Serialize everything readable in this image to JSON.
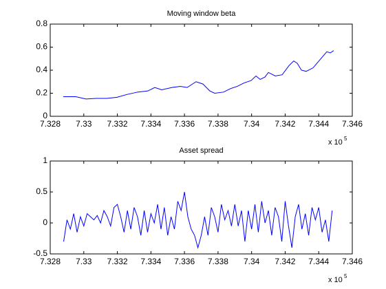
{
  "chart_data": [
    {
      "type": "line",
      "title": "Moving window beta",
      "x_scale_label": "x 10",
      "x_scale_exponent": "5",
      "xlim": [
        7.328,
        7.346
      ],
      "xticks": [
        7.328,
        7.33,
        7.332,
        7.334,
        7.336,
        7.338,
        7.34,
        7.342,
        7.344,
        7.346
      ],
      "ylim": [
        0,
        0.8
      ],
      "yticks": [
        0,
        0.2,
        0.4,
        0.6,
        0.8
      ],
      "grid": false,
      "x": [
        7.32878,
        7.32952,
        7.33013,
        7.33075,
        7.33136,
        7.33198,
        7.33259,
        7.33321,
        7.33382,
        7.33423,
        7.33464,
        7.33526,
        7.33575,
        7.33616,
        7.33669,
        7.3371,
        7.33751,
        7.3378,
        7.33833,
        7.33874,
        7.33915,
        7.33956,
        7.33997,
        7.34026,
        7.34051,
        7.34079,
        7.341,
        7.34141,
        7.34182,
        7.34223,
        7.34251,
        7.34272,
        7.34297,
        7.34325,
        7.34366,
        7.34407,
        7.34448,
        7.34469,
        7.34489
      ],
      "series": [
        {
          "name": "beta",
          "color": "#0000ff",
          "values": [
            0.17,
            0.17,
            0.15,
            0.155,
            0.155,
            0.165,
            0.19,
            0.21,
            0.22,
            0.25,
            0.23,
            0.25,
            0.26,
            0.25,
            0.3,
            0.28,
            0.22,
            0.2,
            0.21,
            0.24,
            0.26,
            0.29,
            0.31,
            0.35,
            0.32,
            0.34,
            0.38,
            0.35,
            0.36,
            0.44,
            0.48,
            0.46,
            0.4,
            0.39,
            0.42,
            0.49,
            0.56,
            0.55,
            0.57
          ]
        }
      ]
    },
    {
      "type": "line",
      "title": "Asset spread",
      "x_scale_label": "x 10",
      "x_scale_exponent": "5",
      "xlim": [
        7.328,
        7.346
      ],
      "xticks": [
        7.328,
        7.33,
        7.332,
        7.334,
        7.336,
        7.338,
        7.34,
        7.342,
        7.344,
        7.346
      ],
      "ylim": [
        -0.5,
        1
      ],
      "yticks": [
        -0.5,
        0,
        0.5,
        1
      ],
      "grid": false,
      "x": [
        7.3288,
        7.329,
        7.3292,
        7.3294,
        7.3296,
        7.3298,
        7.33,
        7.3302,
        7.3304,
        7.3306,
        7.3308,
        7.331,
        7.3312,
        7.3314,
        7.3316,
        7.3318,
        7.332,
        7.3322,
        7.3324,
        7.3326,
        7.3328,
        7.333,
        7.3332,
        7.3334,
        7.3336,
        7.3338,
        7.334,
        7.3342,
        7.3344,
        7.3346,
        7.3348,
        7.335,
        7.3352,
        7.3354,
        7.3356,
        7.3358,
        7.336,
        7.3362,
        7.3364,
        7.3366,
        7.3368,
        7.337,
        7.3372,
        7.3374,
        7.3376,
        7.3378,
        7.338,
        7.3382,
        7.3384,
        7.3386,
        7.3388,
        7.339,
        7.3392,
        7.3394,
        7.3396,
        7.3398,
        7.34,
        7.3402,
        7.3404,
        7.3406,
        7.3408,
        7.341,
        7.3412,
        7.3414,
        7.3416,
        7.3418,
        7.342,
        7.3422,
        7.3424,
        7.3426,
        7.3428,
        7.343,
        7.3432,
        7.3434,
        7.3436,
        7.3438,
        7.344,
        7.3442,
        7.3444,
        7.3446,
        7.3448
      ],
      "series": [
        {
          "name": "spread",
          "color": "#0000ff",
          "values": [
            -0.3,
            0.05,
            -0.1,
            0.15,
            -0.15,
            0.1,
            -0.05,
            0.15,
            0.1,
            0.05,
            0.12,
            0.0,
            0.2,
            0.1,
            -0.05,
            0.25,
            0.3,
            0.1,
            -0.15,
            0.2,
            -0.1,
            0.25,
            0.1,
            -0.2,
            0.2,
            -0.15,
            0.15,
            0.0,
            0.3,
            -0.1,
            0.25,
            -0.2,
            0.1,
            -0.1,
            0.35,
            0.2,
            0.5,
            0.1,
            -0.1,
            -0.2,
            -0.4,
            -0.2,
            0.1,
            -0.2,
            0.25,
            0.1,
            -0.15,
            0.3,
            0.05,
            0.2,
            -0.05,
            0.3,
            -0.05,
            0.2,
            -0.3,
            0.2,
            -0.1,
            0.3,
            -0.15,
            0.35,
            0.0,
            0.2,
            -0.2,
            0.25,
            0.1,
            -0.3,
            0.35,
            -0.05,
            -0.4,
            0.1,
            0.3,
            -0.1,
            0.15,
            -0.2,
            0.25,
            0.05,
            0.25,
            -0.15,
            0.05,
            -0.3,
            0.2
          ]
        }
      ]
    }
  ]
}
